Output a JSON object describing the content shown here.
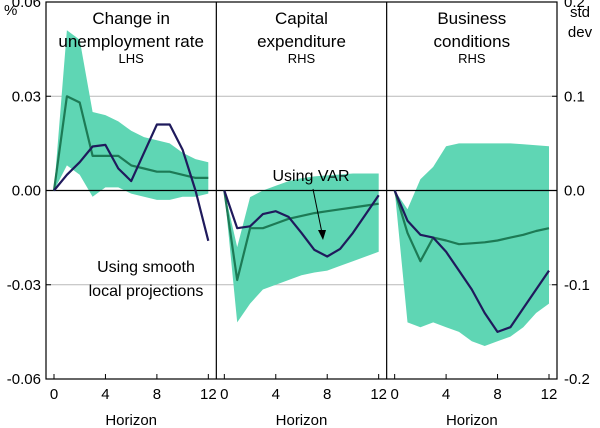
{
  "chart_data": {
    "type": "line",
    "left_unit": "%",
    "right_unit": "std dev",
    "left_ticks": [
      "0.06",
      "0.03",
      "0.00",
      "-0.03",
      "-0.06"
    ],
    "right_ticks": [
      "0.2",
      "0.1",
      "0.0",
      "-0.1",
      "-0.2"
    ],
    "left_ylim": [
      -0.06,
      0.06
    ],
    "right_ylim": [
      -0.2,
      0.2
    ],
    "x_ticks": [
      "0",
      "4",
      "8",
      "12"
    ],
    "x": [
      0,
      1,
      2,
      3,
      4,
      5,
      6,
      7,
      8,
      9,
      10,
      11,
      12
    ],
    "xlabel": "Horizon",
    "colors": {
      "band": "#5fd6b4",
      "var_line": "#1d7a55",
      "lp_line": "#1f1a5c"
    },
    "panels": [
      {
        "title_line1": "Change in",
        "title_line2": "unemployment rate",
        "side": "LHS",
        "axis": "left",
        "series": [
          {
            "name": "Using VAR",
            "values": [
              0.0,
              0.03,
              0.028,
              0.011,
              0.011,
              0.011,
              0.008,
              0.007,
              0.006,
              0.006,
              0.005,
              0.004,
              0.004
            ]
          },
          {
            "name": "Using smooth local projections",
            "values": [
              0.0,
              0.005,
              0.009,
              0.014,
              0.0145,
              0.007,
              0.003,
              0.012,
              0.021,
              0.021,
              0.013,
              0.0,
              -0.016
            ]
          }
        ],
        "band_upper": [
          0.0,
          0.051,
          0.048,
          0.025,
          0.024,
          0.022,
          0.019,
          0.017,
          0.016,
          0.015,
          0.012,
          0.01,
          0.009
        ],
        "band_lower": [
          0.0,
          0.008,
          0.005,
          -0.002,
          0.001,
          0.001,
          -0.001,
          -0.002,
          -0.003,
          -0.003,
          -0.002,
          -0.002,
          -0.001
        ]
      },
      {
        "title_line1": "Capital",
        "title_line2": "expenditure",
        "side": "RHS",
        "axis": "right",
        "series": [
          {
            "name": "Using VAR",
            "values": [
              0.0,
              -0.095,
              -0.04,
              -0.04,
              -0.035,
              -0.03,
              -0.027,
              -0.024,
              -0.022,
              -0.02,
              -0.018,
              -0.016,
              -0.014
            ]
          },
          {
            "name": "Using smooth local projections",
            "values": [
              0.0,
              -0.04,
              -0.038,
              -0.025,
              -0.022,
              -0.028,
              -0.045,
              -0.063,
              -0.07,
              -0.062,
              -0.045,
              -0.025,
              -0.005
            ]
          }
        ],
        "band_upper": [
          0.0,
          -0.06,
          -0.007,
          0.0,
          0.005,
          0.01,
          0.013,
          0.015,
          0.016,
          0.017,
          0.018,
          0.018,
          0.018
        ],
        "band_lower": [
          0.0,
          -0.14,
          -0.12,
          -0.105,
          -0.1,
          -0.095,
          -0.09,
          -0.087,
          -0.085,
          -0.08,
          -0.075,
          -0.07,
          -0.065
        ]
      },
      {
        "title_line1": "Business",
        "title_line2": "conditions",
        "side": "RHS",
        "axis": "right",
        "series": [
          {
            "name": "Using VAR",
            "values": [
              0.0,
              -0.045,
              -0.075,
              -0.05,
              -0.053,
              -0.057,
              -0.056,
              -0.055,
              -0.053,
              -0.05,
              -0.047,
              -0.043,
              -0.04
            ]
          },
          {
            "name": "Using smooth local projections",
            "values": [
              0.0,
              -0.032,
              -0.047,
              -0.05,
              -0.065,
              -0.085,
              -0.105,
              -0.13,
              -0.15,
              -0.145,
              -0.125,
              -0.105,
              -0.085
            ]
          }
        ],
        "band_upper": [
          0.0,
          -0.02,
          0.012,
          0.025,
          0.047,
          0.05,
          0.05,
          0.05,
          0.05,
          0.05,
          0.049,
          0.048,
          0.047
        ],
        "band_lower": [
          0.0,
          -0.14,
          -0.145,
          -0.14,
          -0.145,
          -0.15,
          -0.16,
          -0.165,
          -0.16,
          -0.155,
          -0.145,
          -0.13,
          -0.12
        ]
      }
    ],
    "annotations": [
      {
        "text": "Using VAR",
        "series": "Using VAR"
      },
      {
        "text_line1": "Using smooth",
        "text_line2": "local projections",
        "series": "Using smooth local projections"
      }
    ]
  }
}
